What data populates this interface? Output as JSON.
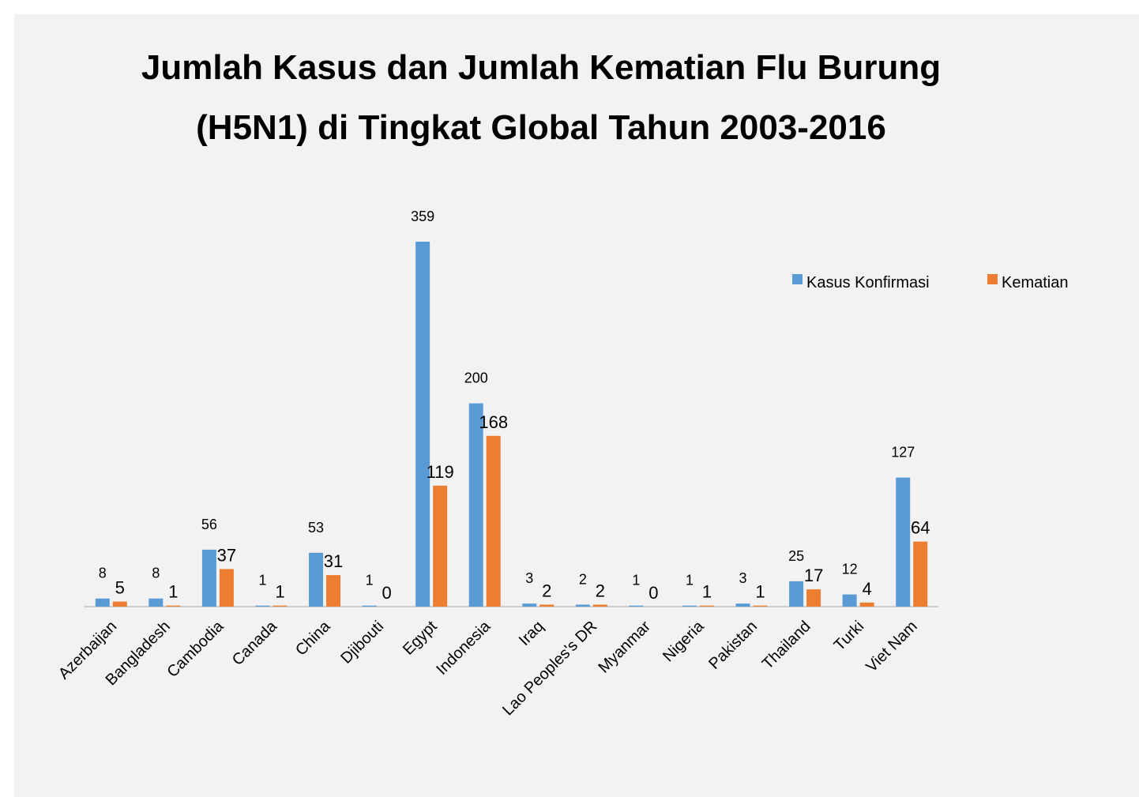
{
  "chart_data": {
    "type": "bar",
    "title": [
      "Jumlah Kasus dan Jumlah Kematian Flu Burung",
      "(H5N1) di Tingkat Global Tahun 2003-2016"
    ],
    "categories": [
      "Azerbaijan",
      "Bangladesh",
      "Cambodia",
      "Canada",
      "China",
      "Djibouti",
      "Egypt",
      "Indonesia",
      "Iraq",
      "Lao Peoples's DR",
      "Myanmar",
      "Nigeria",
      "Pakistan",
      "Thailand",
      "Turki",
      "Viet Nam"
    ],
    "series": [
      {
        "name": "Kasus Konfirmasi",
        "color": "#5b9bd5",
        "values": [
          8,
          8,
          56,
          1,
          53,
          1,
          359,
          200,
          3,
          2,
          1,
          1,
          3,
          25,
          12,
          127
        ]
      },
      {
        "name": "Kematian",
        "color": "#ed7d31",
        "values": [
          5,
          1,
          37,
          1,
          31,
          0,
          119,
          168,
          2,
          2,
          0,
          1,
          1,
          17,
          4,
          64
        ]
      }
    ],
    "legend": "top-right"
  }
}
